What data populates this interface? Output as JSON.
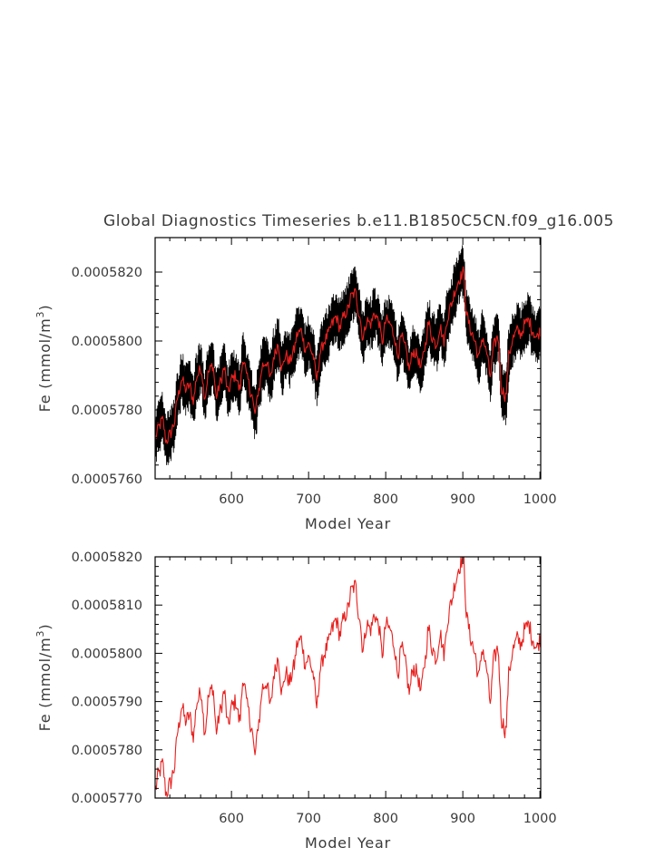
{
  "chart_data": [
    {
      "type": "line",
      "title": "Global Diagnostics Timeseries b.e11.B1850C5CN.f09_g16.005",
      "xlabel": "Model Year",
      "ylabel_main": "Fe (mmol/m",
      "ylabel_sup": "3",
      "ylabel_end": ")",
      "xlim": [
        501,
        1001
      ],
      "ylim": [
        0.000576,
        0.000583
      ],
      "x_ticks": [
        600,
        700,
        800,
        900,
        1000
      ],
      "x_tick_labels": [
        "600",
        "700",
        "800",
        "900",
        "1000"
      ],
      "y_ticks": [
        0.000576,
        0.000578,
        0.00058,
        0.000582
      ],
      "y_tick_labels": [
        "0.0005760",
        "0.0005780",
        "0.0005800",
        "0.0005820"
      ],
      "series": [
        {
          "color": "#000000",
          "kind": "monthly",
          "smoothing": 0
        },
        {
          "color": "#e8201e",
          "kind": "annual",
          "smoothing": 0
        }
      ]
    },
    {
      "type": "line",
      "xlabel": "Model Year",
      "ylabel_main": "Fe (mmol/m",
      "ylabel_sup": "3",
      "ylabel_end": ")",
      "xlim": [
        501,
        1001
      ],
      "ylim": [
        0.000577,
        0.000582
      ],
      "x_ticks": [
        600,
        700,
        800,
        900,
        1000
      ],
      "x_tick_labels": [
        "600",
        "700",
        "800",
        "900",
        "1000"
      ],
      "y_ticks": [
        0.000577,
        0.000578,
        0.000579,
        0.00058,
        0.000581,
        0.000582
      ],
      "y_tick_labels": [
        "0.0005770",
        "0.0005780",
        "0.0005790",
        "0.0005800",
        "0.0005810",
        "0.0005820"
      ],
      "series": [
        {
          "color": "#e8201e",
          "kind": "annual"
        }
      ]
    }
  ],
  "annual_anchors": {
    "x": [
      501,
      505,
      510,
      515,
      520,
      525,
      530,
      535,
      540,
      545,
      550,
      555,
      560,
      565,
      570,
      575,
      580,
      585,
      590,
      595,
      600,
      605,
      610,
      615,
      620,
      625,
      630,
      635,
      640,
      645,
      650,
      655,
      660,
      665,
      670,
      675,
      680,
      685,
      690,
      695,
      700,
      705,
      710,
      715,
      720,
      725,
      730,
      735,
      740,
      745,
      750,
      755,
      760,
      765,
      770,
      775,
      780,
      785,
      790,
      795,
      800,
      805,
      810,
      815,
      820,
      825,
      830,
      835,
      840,
      845,
      850,
      855,
      860,
      865,
      870,
      875,
      880,
      885,
      890,
      895,
      900,
      905,
      910,
      915,
      920,
      925,
      930,
      935,
      940,
      945,
      950,
      955,
      960,
      965,
      970,
      975,
      980,
      985,
      990,
      995,
      1000
    ],
    "y": [
      0.0005772,
      0.0005775,
      0.0005777,
      0.0005771,
      0.0005773,
      0.0005776,
      0.0005784,
      0.0005789,
      0.0005786,
      0.0005787,
      0.0005783,
      0.000579,
      0.0005792,
      0.0005784,
      0.0005791,
      0.0005793,
      0.0005784,
      0.0005788,
      0.0005792,
      0.0005785,
      0.0005789,
      0.000579,
      0.0005786,
      0.0005795,
      0.0005789,
      0.0005785,
      0.0005779,
      0.0005786,
      0.0005793,
      0.0005794,
      0.0005789,
      0.0005796,
      0.0005799,
      0.0005792,
      0.0005796,
      0.0005794,
      0.0005797,
      0.0005802,
      0.0005803,
      0.0005798,
      0.0005799,
      0.0005796,
      0.0005789,
      0.0005797,
      0.00058,
      0.0005802,
      0.0005805,
      0.0005807,
      0.0005804,
      0.0005807,
      0.0005809,
      0.0005813,
      0.0005814,
      0.0005808,
      0.0005801,
      0.0005806,
      0.0005805,
      0.0005808,
      0.0005806,
      0.00058,
      0.0005806,
      0.0005805,
      0.0005802,
      0.0005796,
      0.0005801,
      0.0005798,
      0.0005792,
      0.0005797,
      0.0005796,
      0.0005792,
      0.0005798,
      0.0005805,
      0.0005801,
      0.0005799,
      0.0005804,
      0.00058,
      0.0005807,
      0.0005811,
      0.0005815,
      0.0005818,
      0.000582,
      0.0005807,
      0.0005803,
      0.00058,
      0.0005795,
      0.0005801,
      0.0005797,
      0.000579,
      0.0005799,
      0.0005801,
      0.0005786,
      0.0005784,
      0.0005797,
      0.0005801,
      0.0005803,
      0.0005802,
      0.0005805,
      0.0005806,
      0.0005803,
      0.0005801,
      0.0005803
    ]
  }
}
